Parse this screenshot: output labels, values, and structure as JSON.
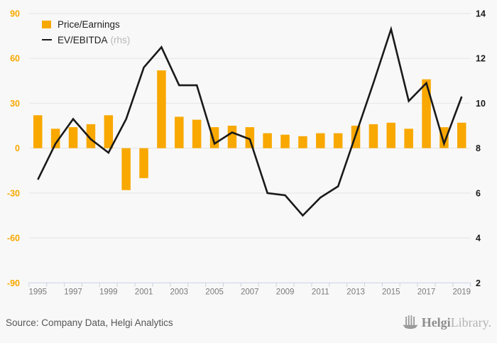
{
  "legend": {
    "series1_label": "Price/Earnings",
    "series2_label": "EV/EBITDA",
    "series2_suffix": "(rhs)"
  },
  "footer": {
    "source": "Source: Company Data, Helgi Analytics",
    "logo_bold": "Helgi",
    "logo_light": "Library."
  },
  "colors": {
    "bar": "#F9A800",
    "line": "#1A1A1A",
    "left_axis": "#F9A800",
    "right_axis": "#1A1A1A",
    "x_axis_labels": "#7A7A7A",
    "gridline": "#E5E5E5",
    "axis_line": "#C9D2E2",
    "background": "#F8F8F8"
  },
  "chart_data": {
    "type": "bar+line combo",
    "x": [
      1995,
      1996,
      1997,
      1998,
      1999,
      2000,
      2001,
      2002,
      2003,
      2004,
      2005,
      2006,
      2007,
      2008,
      2009,
      2010,
      2011,
      2012,
      2013,
      2014,
      2015,
      2016,
      2017,
      2018,
      2019
    ],
    "series": [
      {
        "name": "Price/Earnings",
        "type": "bar",
        "axis": "left",
        "values": [
          22,
          13,
          14,
          16,
          22,
          -28,
          -20,
          52,
          21,
          19,
          14,
          15,
          14,
          10,
          9,
          8,
          10,
          10,
          15,
          16,
          17,
          13,
          46,
          14,
          17
        ]
      },
      {
        "name": "EV/EBITDA (rhs)",
        "type": "line",
        "axis": "right",
        "values": [
          6.6,
          8.2,
          9.3,
          8.4,
          7.8,
          9.3,
          11.6,
          12.5,
          10.8,
          10.8,
          8.2,
          8.7,
          8.4,
          6.0,
          5.9,
          5.0,
          5.8,
          6.3,
          8.6,
          10.9,
          13.3,
          10.1,
          10.9,
          8.2,
          10.3
        ]
      }
    ],
    "left_axis": {
      "ticks": [
        90,
        60,
        30,
        0,
        -30,
        -60,
        -90
      ],
      "range": [
        -90,
        90
      ]
    },
    "right_axis": {
      "ticks": [
        14,
        12,
        10,
        8,
        6,
        4,
        2
      ],
      "range": [
        2,
        14
      ]
    },
    "x_tick_labels": [
      1995,
      1997,
      1999,
      2001,
      2003,
      2005,
      2007,
      2009,
      2011,
      2013,
      2015,
      2017,
      2019
    ],
    "grid": true,
    "legend_position": "top-left"
  }
}
